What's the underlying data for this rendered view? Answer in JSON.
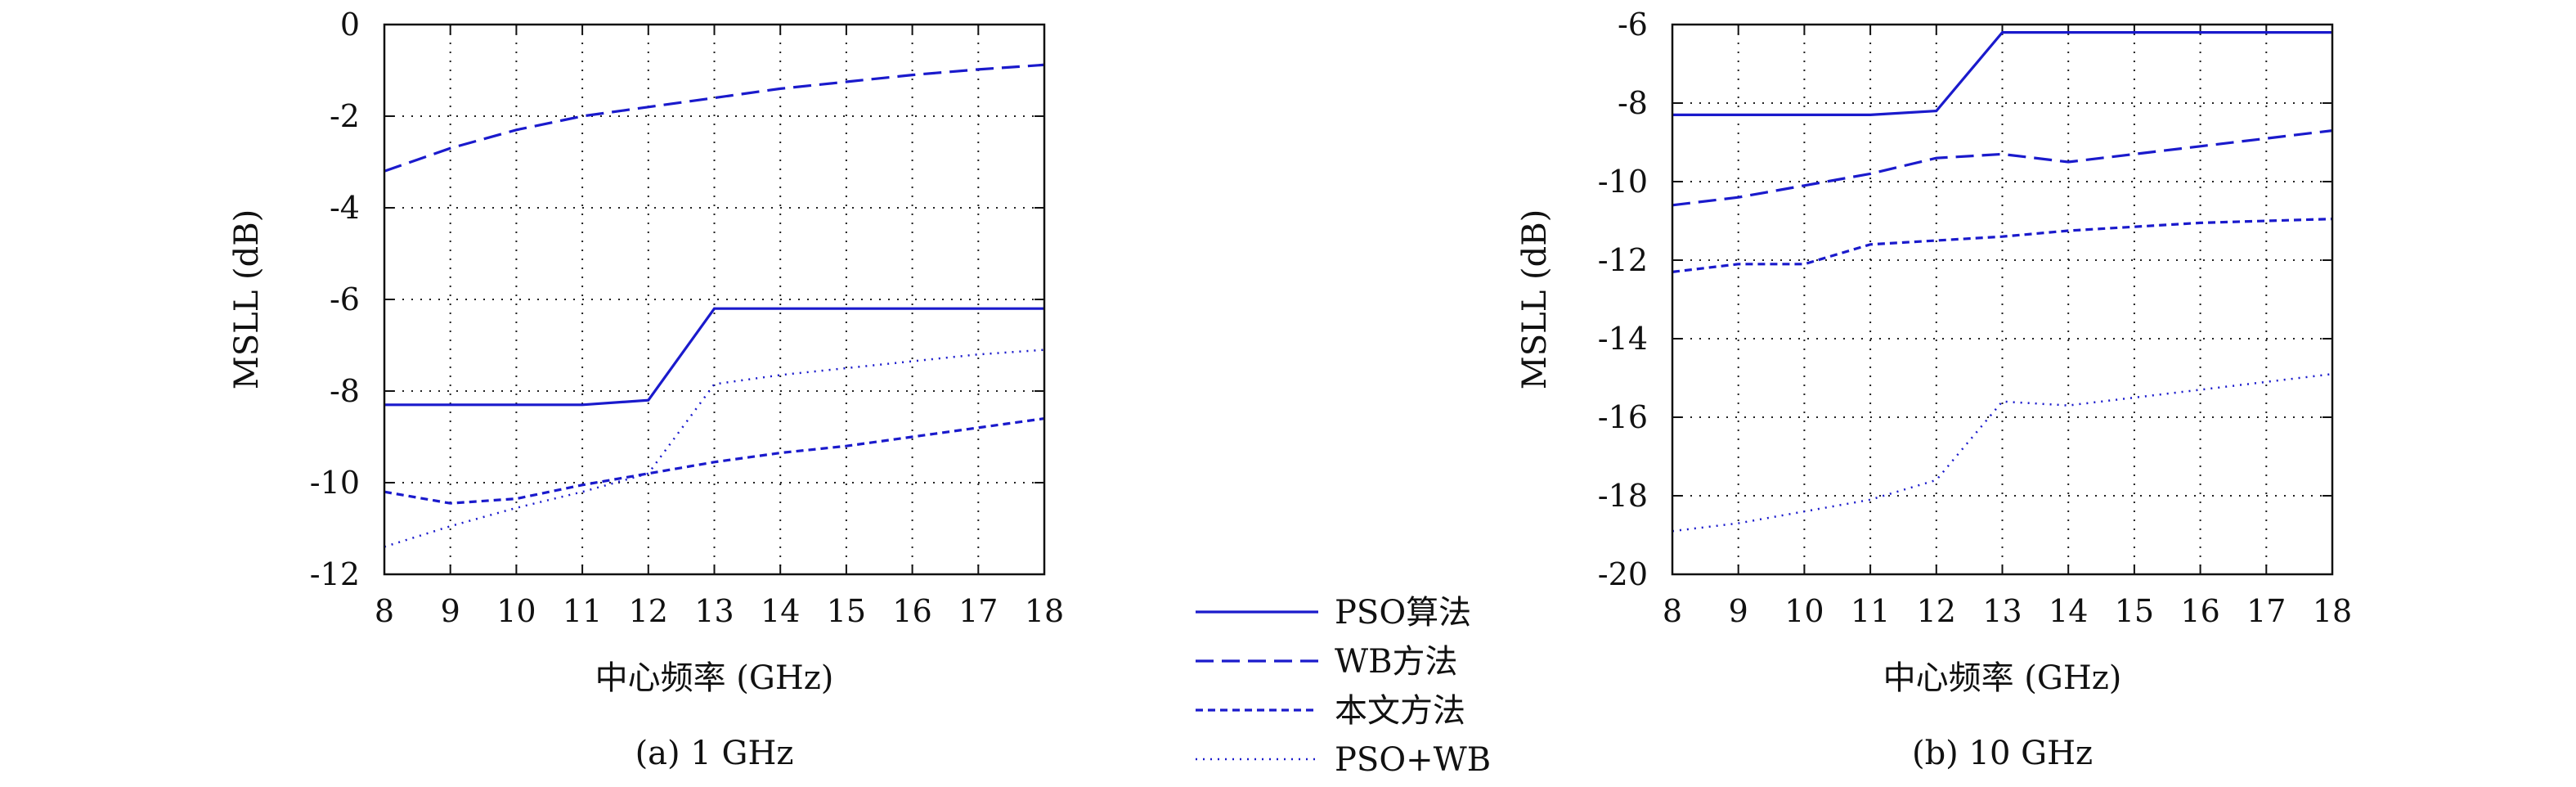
{
  "legend": {
    "entries": [
      {
        "label": "PSO算法",
        "dash": "solid"
      },
      {
        "label": "WB方法",
        "dash": "long"
      },
      {
        "label": "本文方法",
        "dash": "short"
      },
      {
        "label": "PSO+WB",
        "dash": "dotted"
      }
    ],
    "color": "#1a1acc"
  },
  "chart_data": [
    {
      "type": "line",
      "caption": "(a) 1 GHz",
      "xlabel": "中心频率 (GHz)",
      "ylabel": "MSLL (dB)",
      "xlim": [
        8,
        18
      ],
      "ylim": [
        -12,
        0
      ],
      "xticks": [
        8,
        9,
        10,
        11,
        12,
        13,
        14,
        15,
        16,
        17,
        18
      ],
      "yticks": [
        0,
        -2,
        -4,
        -6,
        -8,
        -10,
        -12
      ],
      "grid": true,
      "x": [
        8,
        9,
        10,
        11,
        12,
        13,
        14,
        15,
        16,
        17,
        18
      ],
      "series": [
        {
          "name": "PSO算法",
          "values": [
            -8.3,
            -8.3,
            -8.3,
            -8.3,
            -8.2,
            -6.2,
            -6.2,
            -6.2,
            -6.2,
            -6.2,
            -6.2
          ]
        },
        {
          "name": "WB方法",
          "values": [
            -3.2,
            -2.7,
            -2.3,
            -2.0,
            -1.8,
            -1.6,
            -1.4,
            -1.25,
            -1.1,
            -0.98,
            -0.88
          ]
        },
        {
          "name": "本文方法",
          "values": [
            -10.2,
            -10.45,
            -10.35,
            -10.05,
            -9.8,
            -9.55,
            -9.35,
            -9.2,
            -9.0,
            -8.8,
            -8.6
          ]
        },
        {
          "name": "PSO+WB",
          "values": [
            -11.4,
            -10.95,
            -10.55,
            -10.2,
            -9.8,
            -7.85,
            -7.65,
            -7.5,
            -7.35,
            -7.2,
            -7.1
          ]
        }
      ]
    },
    {
      "type": "line",
      "caption": "(b) 10 GHz",
      "xlabel": "中心频率 (GHz)",
      "ylabel": "MSLL (dB)",
      "xlim": [
        8,
        18
      ],
      "ylim": [
        -20,
        -6
      ],
      "xticks": [
        8,
        9,
        10,
        11,
        12,
        13,
        14,
        15,
        16,
        17,
        18
      ],
      "yticks": [
        -6,
        -8,
        -10,
        -12,
        -14,
        -16,
        -18,
        -20
      ],
      "grid": true,
      "x": [
        8,
        9,
        10,
        11,
        12,
        13,
        14,
        15,
        16,
        17,
        18
      ],
      "series": [
        {
          "name": "PSO算法",
          "values": [
            -8.3,
            -8.3,
            -8.3,
            -8.3,
            -8.2,
            -6.2,
            -6.2,
            -6.2,
            -6.2,
            -6.2,
            -6.2
          ]
        },
        {
          "name": "WB方法",
          "values": [
            -10.6,
            -10.4,
            -10.1,
            -9.8,
            -9.4,
            -9.3,
            -9.5,
            -9.3,
            -9.1,
            -8.9,
            -8.7
          ]
        },
        {
          "name": "本文方法",
          "values": [
            -12.3,
            -12.1,
            -12.1,
            -11.6,
            -11.5,
            -11.4,
            -11.25,
            -11.15,
            -11.05,
            -11.0,
            -10.95
          ]
        },
        {
          "name": "PSO+WB",
          "values": [
            -18.9,
            -18.7,
            -18.4,
            -18.1,
            -17.6,
            -15.6,
            -15.7,
            -15.5,
            -15.3,
            -15.1,
            -14.9
          ]
        }
      ]
    }
  ]
}
